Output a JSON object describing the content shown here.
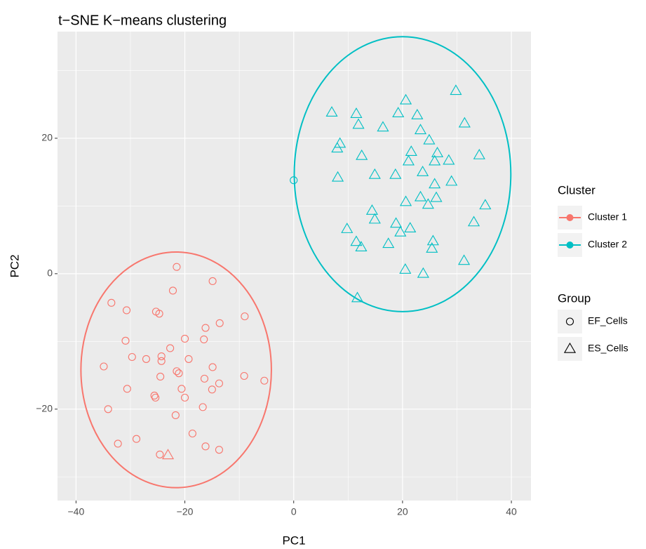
{
  "chart_data": {
    "type": "scatter",
    "title": "t−SNE K−means clustering",
    "x_label": "PC1",
    "y_label": "PC2",
    "xlim": [
      -43.4,
      43.6
    ],
    "ylim": [
      -33.5,
      35.75
    ],
    "xticks": [
      {
        "value": -40,
        "label": "−40"
      },
      {
        "value": -20,
        "label": "−20"
      },
      0,
      20,
      40
    ],
    "yticks": [
      {
        "value": -20,
        "label": "−20"
      },
      0,
      20
    ],
    "minor_xticks": [
      -30,
      -10,
      10,
      30
    ],
    "minor_yticks": [
      -30,
      -10,
      10,
      30
    ],
    "grid": true,
    "legend_title": "Cluster",
    "group_legend_title": "Group",
    "groups": [
      {
        "name": "EF_Cells",
        "shape": "circle"
      },
      {
        "name": "ES_Cells",
        "shape": "triangle"
      }
    ],
    "series": [
      {
        "name": "Cluster 1",
        "color": "#f8766d",
        "ellipse": {
          "cx": -21.6,
          "cy": -14.2,
          "rx": 17.5,
          "ry": 17.4
        },
        "points": [
          {
            "x": -21.5,
            "y": 1.0,
            "group": "EF_Cells"
          },
          {
            "x": -22.2,
            "y": -2.5,
            "group": "EF_Cells"
          },
          {
            "x": -14.9,
            "y": -1.1,
            "group": "EF_Cells"
          },
          {
            "x": -33.5,
            "y": -4.3,
            "group": "EF_Cells"
          },
          {
            "x": -30.7,
            "y": -5.4,
            "group": "EF_Cells"
          },
          {
            "x": -25.3,
            "y": -5.6,
            "group": "EF_Cells"
          },
          {
            "x": -24.7,
            "y": -5.9,
            "group": "EF_Cells"
          },
          {
            "x": -9.0,
            "y": -6.3,
            "group": "EF_Cells"
          },
          {
            "x": -13.6,
            "y": -7.3,
            "group": "EF_Cells"
          },
          {
            "x": -16.2,
            "y": -8.0,
            "group": "EF_Cells"
          },
          {
            "x": -20.0,
            "y": -9.6,
            "group": "EF_Cells"
          },
          {
            "x": -16.5,
            "y": -9.7,
            "group": "EF_Cells"
          },
          {
            "x": -30.9,
            "y": -9.9,
            "group": "EF_Cells"
          },
          {
            "x": -22.7,
            "y": -11.0,
            "group": "EF_Cells"
          },
          {
            "x": -29.7,
            "y": -12.3,
            "group": "EF_Cells"
          },
          {
            "x": -27.1,
            "y": -12.6,
            "group": "EF_Cells"
          },
          {
            "x": -24.3,
            "y": -12.2,
            "group": "EF_Cells"
          },
          {
            "x": -24.3,
            "y": -12.9,
            "group": "EF_Cells"
          },
          {
            "x": -21.5,
            "y": -14.4,
            "group": "EF_Cells"
          },
          {
            "x": -21.1,
            "y": -14.7,
            "group": "EF_Cells"
          },
          {
            "x": -19.3,
            "y": -12.6,
            "group": "EF_Cells"
          },
          {
            "x": -14.9,
            "y": -13.8,
            "group": "EF_Cells"
          },
          {
            "x": -13.7,
            "y": -16.2,
            "group": "EF_Cells"
          },
          {
            "x": -9.1,
            "y": -15.1,
            "group": "EF_Cells"
          },
          {
            "x": -5.4,
            "y": -15.8,
            "group": "EF_Cells"
          },
          {
            "x": -34.9,
            "y": -13.7,
            "group": "EF_Cells"
          },
          {
            "x": -30.6,
            "y": -17.0,
            "group": "EF_Cells"
          },
          {
            "x": -24.5,
            "y": -15.2,
            "group": "EF_Cells"
          },
          {
            "x": -16.4,
            "y": -15.5,
            "group": "EF_Cells"
          },
          {
            "x": -15.0,
            "y": -17.1,
            "group": "EF_Cells"
          },
          {
            "x": -20.6,
            "y": -17.0,
            "group": "EF_Cells"
          },
          {
            "x": -20.0,
            "y": -18.3,
            "group": "EF_Cells"
          },
          {
            "x": -25.6,
            "y": -18.0,
            "group": "EF_Cells"
          },
          {
            "x": -25.4,
            "y": -18.3,
            "group": "EF_Cells"
          },
          {
            "x": -16.7,
            "y": -19.7,
            "group": "EF_Cells"
          },
          {
            "x": -34.1,
            "y": -20.0,
            "group": "EF_Cells"
          },
          {
            "x": -21.7,
            "y": -20.9,
            "group": "EF_Cells"
          },
          {
            "x": -18.6,
            "y": -23.6,
            "group": "EF_Cells"
          },
          {
            "x": -28.9,
            "y": -24.4,
            "group": "EF_Cells"
          },
          {
            "x": -32.3,
            "y": -25.1,
            "group": "EF_Cells"
          },
          {
            "x": -16.2,
            "y": -25.5,
            "group": "EF_Cells"
          },
          {
            "x": -13.7,
            "y": -26.0,
            "group": "EF_Cells"
          },
          {
            "x": -24.6,
            "y": -26.7,
            "group": "EF_Cells"
          },
          {
            "x": -23.1,
            "y": -26.8,
            "group": "ES_Cells"
          }
        ]
      },
      {
        "name": "Cluster 2",
        "color": "#00bfc4",
        "ellipse": {
          "cx": 20.0,
          "cy": 14.7,
          "rx": 19.9,
          "ry": 20.3
        },
        "points": [
          {
            "x": 7.0,
            "y": 23.8,
            "group": "ES_Cells"
          },
          {
            "x": 11.5,
            "y": 23.6,
            "group": "ES_Cells"
          },
          {
            "x": 20.6,
            "y": 25.6,
            "group": "ES_Cells"
          },
          {
            "x": 29.8,
            "y": 27.0,
            "group": "ES_Cells"
          },
          {
            "x": 19.2,
            "y": 23.7,
            "group": "ES_Cells"
          },
          {
            "x": 22.7,
            "y": 23.4,
            "group": "ES_Cells"
          },
          {
            "x": 11.9,
            "y": 22.0,
            "group": "ES_Cells"
          },
          {
            "x": 16.4,
            "y": 21.6,
            "group": "ES_Cells"
          },
          {
            "x": 31.4,
            "y": 22.2,
            "group": "ES_Cells"
          },
          {
            "x": 23.3,
            "y": 21.2,
            "group": "ES_Cells"
          },
          {
            "x": 24.9,
            "y": 19.7,
            "group": "ES_Cells"
          },
          {
            "x": 8.5,
            "y": 19.2,
            "group": "ES_Cells"
          },
          {
            "x": 8.0,
            "y": 18.5,
            "group": "ES_Cells"
          },
          {
            "x": 21.6,
            "y": 18.0,
            "group": "ES_Cells"
          },
          {
            "x": 12.5,
            "y": 17.4,
            "group": "ES_Cells"
          },
          {
            "x": 26.4,
            "y": 17.8,
            "group": "ES_Cells"
          },
          {
            "x": 34.1,
            "y": 17.5,
            "group": "ES_Cells"
          },
          {
            "x": 28.5,
            "y": 16.7,
            "group": "ES_Cells"
          },
          {
            "x": 21.1,
            "y": 16.6,
            "group": "ES_Cells"
          },
          {
            "x": 25.9,
            "y": 16.6,
            "group": "ES_Cells"
          },
          {
            "x": 18.7,
            "y": 14.6,
            "group": "ES_Cells"
          },
          {
            "x": 14.9,
            "y": 14.6,
            "group": "ES_Cells"
          },
          {
            "x": 23.7,
            "y": 15.0,
            "group": "ES_Cells"
          },
          {
            "x": 8.1,
            "y": 14.2,
            "group": "ES_Cells"
          },
          {
            "x": 29.0,
            "y": 13.6,
            "group": "ES_Cells"
          },
          {
            "x": 25.9,
            "y": 13.2,
            "group": "ES_Cells"
          },
          {
            "x": 23.3,
            "y": 11.3,
            "group": "ES_Cells"
          },
          {
            "x": 26.2,
            "y": 11.2,
            "group": "ES_Cells"
          },
          {
            "x": 24.7,
            "y": 10.2,
            "group": "ES_Cells"
          },
          {
            "x": 35.2,
            "y": 10.1,
            "group": "ES_Cells"
          },
          {
            "x": 14.4,
            "y": 9.3,
            "group": "ES_Cells"
          },
          {
            "x": 20.6,
            "y": 10.6,
            "group": "ES_Cells"
          },
          {
            "x": 18.8,
            "y": 7.4,
            "group": "ES_Cells"
          },
          {
            "x": 14.9,
            "y": 8.0,
            "group": "ES_Cells"
          },
          {
            "x": 9.8,
            "y": 6.6,
            "group": "ES_Cells"
          },
          {
            "x": 21.4,
            "y": 6.7,
            "group": "ES_Cells"
          },
          {
            "x": 19.6,
            "y": 6.1,
            "group": "ES_Cells"
          },
          {
            "x": 25.6,
            "y": 4.8,
            "group": "ES_Cells"
          },
          {
            "x": 11.5,
            "y": 4.7,
            "group": "ES_Cells"
          },
          {
            "x": 33.1,
            "y": 7.6,
            "group": "ES_Cells"
          },
          {
            "x": 25.4,
            "y": 3.7,
            "group": "ES_Cells"
          },
          {
            "x": 12.4,
            "y": 3.9,
            "group": "ES_Cells"
          },
          {
            "x": 17.4,
            "y": 4.4,
            "group": "ES_Cells"
          },
          {
            "x": 20.5,
            "y": 0.6,
            "group": "ES_Cells"
          },
          {
            "x": 23.8,
            "y": 0.0,
            "group": "ES_Cells"
          },
          {
            "x": 31.3,
            "y": 1.9,
            "group": "ES_Cells"
          },
          {
            "x": 11.7,
            "y": -3.6,
            "group": "ES_Cells"
          },
          {
            "x": 0.0,
            "y": 13.8,
            "group": "EF_Cells"
          }
        ]
      }
    ]
  }
}
